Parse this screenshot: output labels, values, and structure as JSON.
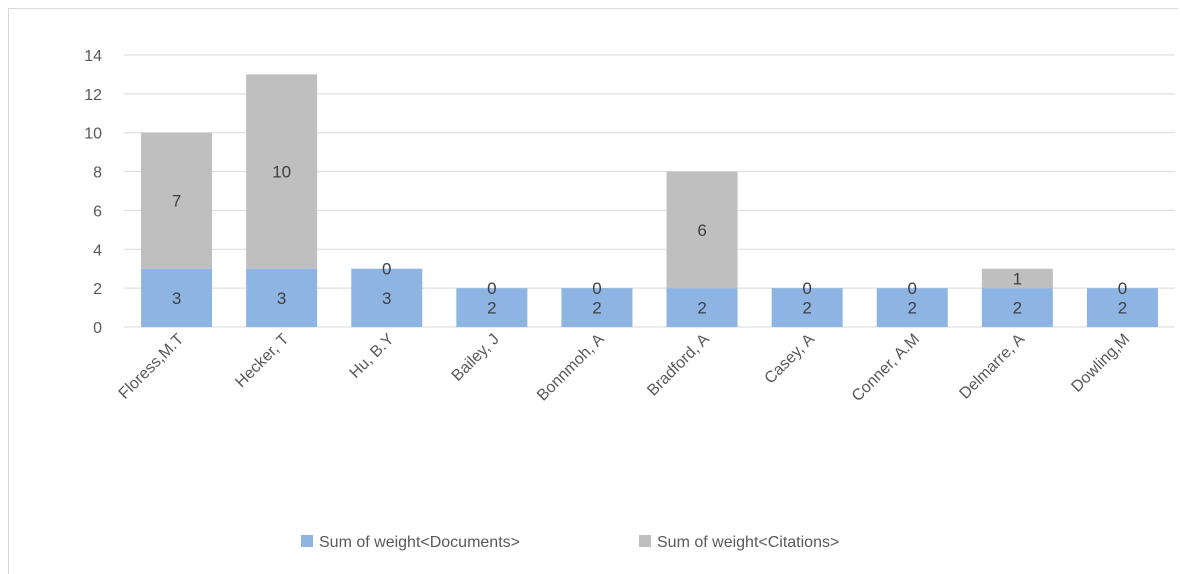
{
  "chart_data": {
    "type": "bar",
    "stacked": true,
    "title": "",
    "xlabel": "",
    "ylabel": "",
    "ylim": [
      0,
      14
    ],
    "yticks": [
      0,
      2,
      4,
      6,
      8,
      10,
      12,
      14
    ],
    "grid": true,
    "legend_position": "bottom",
    "categories": [
      "Floress,M.T",
      "Hecker, T",
      "Hu, B.Y",
      "Bailey, J",
      "Bonnmoh, A",
      "Bradford, A",
      "Casey, A",
      "Conner, A.M",
      "Delmarre, A",
      "Dowling,M"
    ],
    "series": [
      {
        "name": "Sum of weight<Documents>",
        "color": "#8db4e2",
        "values": [
          3,
          3,
          3,
          2,
          2,
          2,
          2,
          2,
          2,
          2
        ]
      },
      {
        "name": "Sum of weight<Citations>",
        "color": "#bfbfbf",
        "values": [
          7,
          10,
          0,
          0,
          0,
          6,
          0,
          0,
          1,
          0
        ]
      }
    ]
  }
}
